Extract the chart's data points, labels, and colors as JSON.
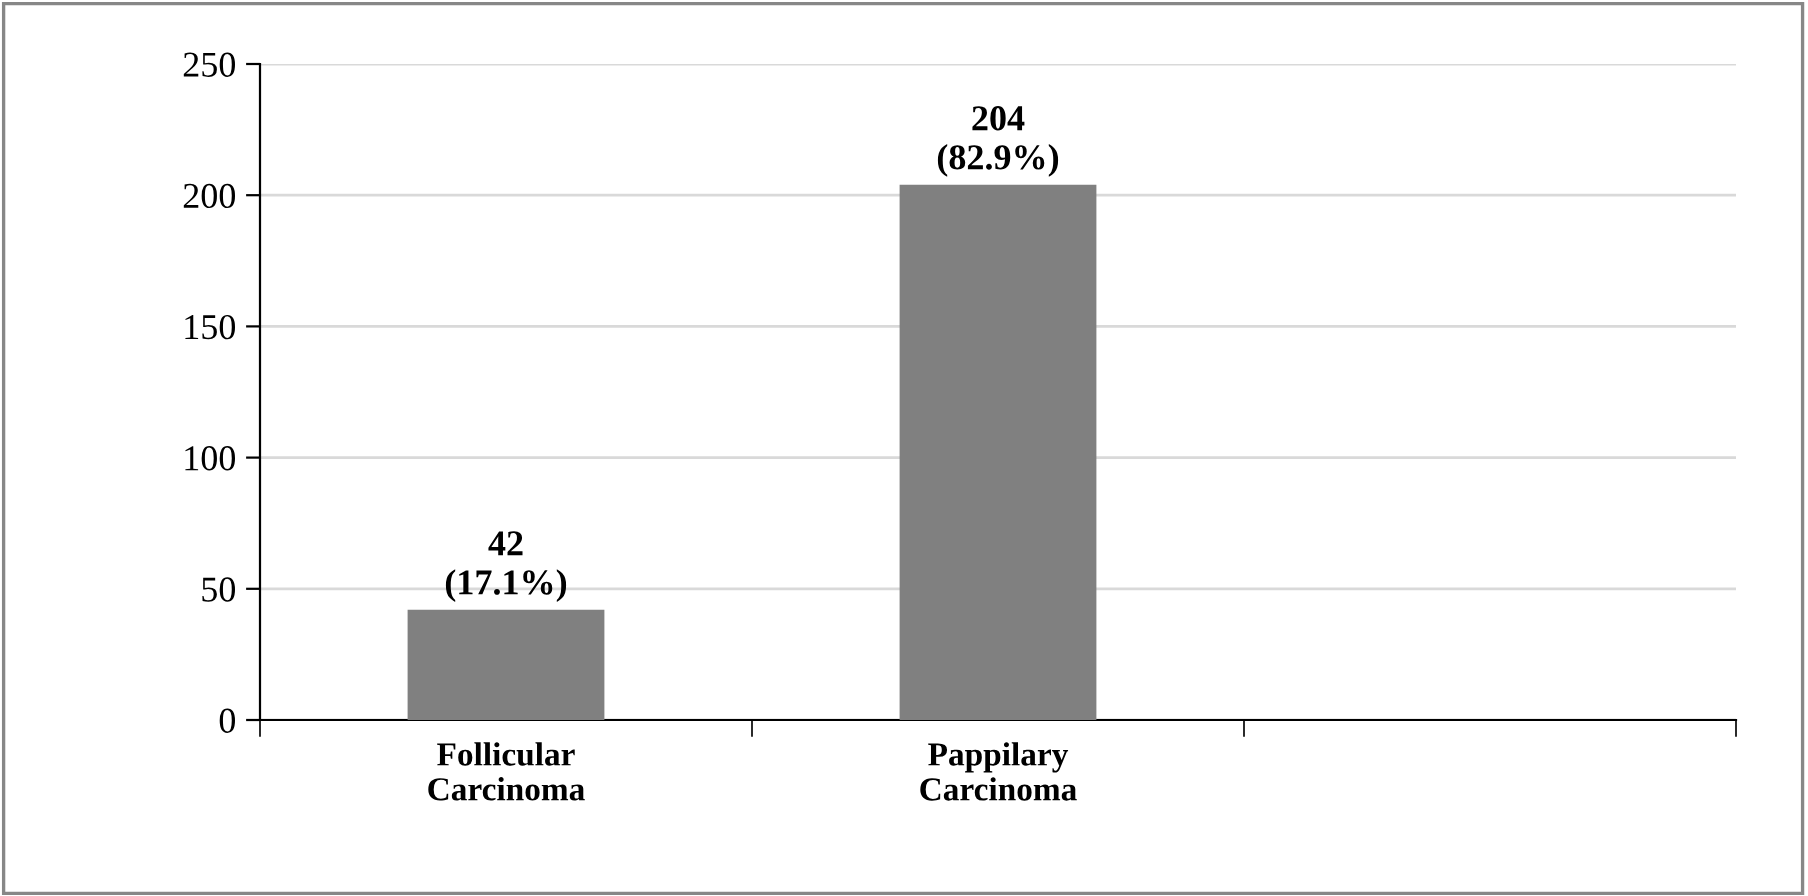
{
  "chart_data": {
    "type": "bar",
    "categories": [
      "Follicular\nCarcinoma",
      "Pappilary\nCarcinoma",
      null
    ],
    "values": [
      42,
      204,
      null
    ],
    "value_labels": [
      "42\n(17.1%)",
      "204\n(82.9%)",
      null
    ],
    "color": "#808080",
    "ylim": [
      0,
      250
    ],
    "yticks": [
      0,
      50,
      100,
      150,
      200,
      250
    ],
    "grid": "y",
    "legend": false
  }
}
